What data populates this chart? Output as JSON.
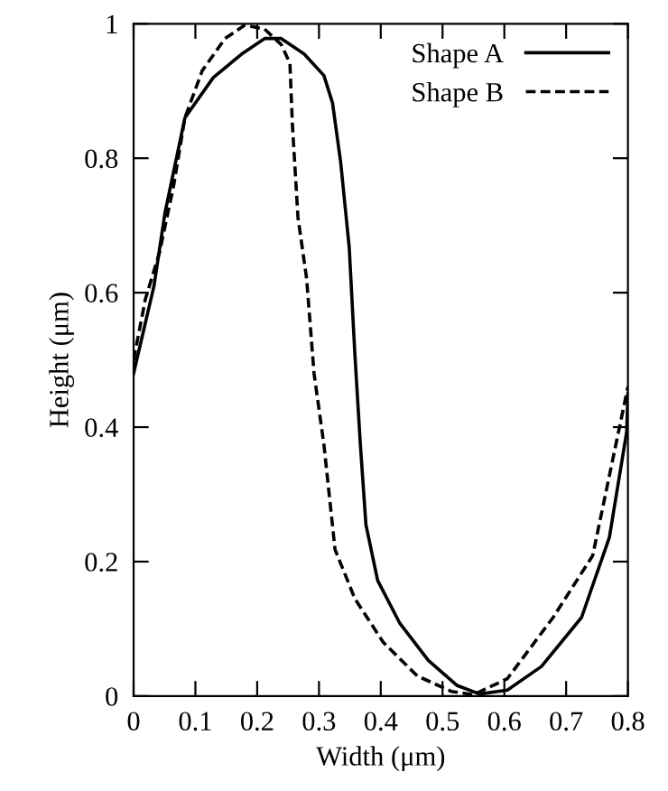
{
  "chart_data": {
    "type": "line",
    "xlabel": "Width (μm)",
    "ylabel": "Height (μm)",
    "xlim": [
      0,
      0.8
    ],
    "ylim": [
      0,
      1
    ],
    "xticks": [
      0,
      0.1,
      0.2,
      0.3,
      0.4,
      0.5,
      0.6,
      0.7,
      0.8
    ],
    "yticks": [
      0,
      0.2,
      0.4,
      0.6,
      0.8,
      1
    ],
    "grid": false,
    "legend": "top right",
    "marker": "none",
    "series": [
      {
        "name": "Shape A",
        "color": "#000000",
        "line_style": "solid",
        "x": [
          0,
          0.033,
          0.051,
          0.083,
          0.129,
          0.175,
          0.212,
          0.239,
          0.276,
          0.308,
          0.322,
          0.335,
          0.349,
          0.358,
          0.367,
          0.376,
          0.395,
          0.431,
          0.477,
          0.523,
          0.56,
          0.605,
          0.66,
          0.725,
          0.77,
          0.798,
          0.8
        ],
        "values": [
          0.48,
          0.61,
          0.72,
          0.86,
          0.92,
          0.955,
          0.978,
          0.978,
          0.955,
          0.923,
          0.882,
          0.795,
          0.667,
          0.51,
          0.374,
          0.255,
          0.172,
          0.108,
          0.053,
          0.016,
          0.003,
          0.009,
          0.044,
          0.117,
          0.236,
          0.393,
          0.45
        ]
      },
      {
        "name": "Shape B",
        "color": "#000000",
        "line_style": "dashed",
        "x": [
          0,
          0.019,
          0.042,
          0.065,
          0.083,
          0.111,
          0.148,
          0.18,
          0.212,
          0.239,
          0.253,
          0.257,
          0.266,
          0.28,
          0.292,
          0.308,
          0.326,
          0.358,
          0.404,
          0.459,
          0.514,
          0.55,
          0.605,
          0.679,
          0.743,
          0.8
        ],
        "values": [
          0.5,
          0.59,
          0.66,
          0.76,
          0.86,
          0.93,
          0.978,
          0.998,
          0.992,
          0.969,
          0.941,
          0.85,
          0.712,
          0.621,
          0.48,
          0.374,
          0.218,
          0.145,
          0.08,
          0.03,
          0.007,
          0.002,
          0.026,
          0.117,
          0.209,
          0.46
        ]
      }
    ]
  }
}
